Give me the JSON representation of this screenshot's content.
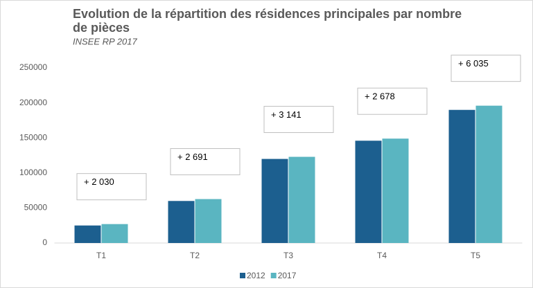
{
  "chart_data": {
    "type": "bar",
    "title": [
      "Evolution de la répartition des résidences principales par nombre",
      "de pièces"
    ],
    "subtitle": "INSEE RP 2017",
    "categories": [
      "T1",
      "T2",
      "T3",
      "T4",
      "T5"
    ],
    "series": [
      {
        "name": "2012",
        "color": "#1c5f8f",
        "values": [
          25000,
          60000,
          120000,
          146000,
          190000
        ]
      },
      {
        "name": "2017",
        "color": "#5ab5c1",
        "values": [
          27000,
          62700,
          123000,
          149000,
          196000
        ]
      }
    ],
    "annotations": [
      "+ 2 030",
      "+ 2 691",
      "+ 3 141",
      "+ 2 678",
      "+ 6 035"
    ],
    "ylim": [
      0,
      250000
    ],
    "yticks": [
      0,
      50000,
      100000,
      150000,
      200000,
      250000
    ],
    "grid": false,
    "legend": "bottom"
  }
}
